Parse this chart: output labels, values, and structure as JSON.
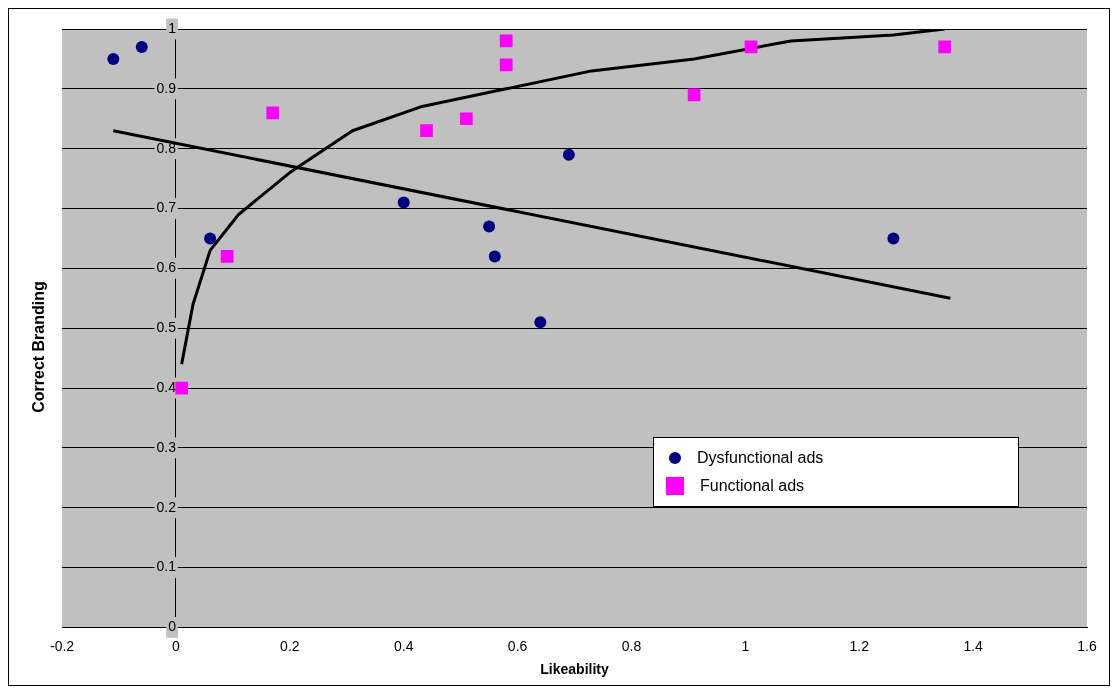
{
  "chart_data": {
    "type": "scatter",
    "xlabel": "Likeability",
    "ylabel": "Correct Branding",
    "xlim": [
      -0.2,
      1.6
    ],
    "xticks": [
      -0.2,
      0,
      0.2,
      0.4,
      0.6,
      0.8,
      1,
      1.2,
      1.4,
      1.6
    ],
    "ylim": [
      0,
      1
    ],
    "yticks": [
      0,
      0.1,
      0.2,
      0.3,
      0.4,
      0.5,
      0.6,
      0.7,
      0.8,
      0.9,
      1
    ],
    "grid": "y",
    "legend": "right",
    "series": [
      {
        "name": "Dysfunctional ads",
        "type": "scatter",
        "marker": "circle",
        "color": "#000080",
        "x": [
          -0.11,
          -0.06,
          0.06,
          0.4,
          0.55,
          0.56,
          0.64,
          0.69,
          1.26
        ],
        "values": [
          0.95,
          0.97,
          0.65,
          0.71,
          0.67,
          0.62,
          0.51,
          0.79,
          0.65
        ]
      },
      {
        "name": "Functional ads",
        "type": "scatter",
        "marker": "square",
        "color": "#ff00ff",
        "x": [
          0.01,
          0.09,
          0.17,
          0.44,
          0.51,
          0.58,
          0.58,
          0.91,
          1.01,
          1.35
        ],
        "values": [
          0.4,
          0.62,
          0.86,
          0.83,
          0.85,
          0.98,
          0.94,
          0.89,
          0.97,
          0.97
        ]
      },
      {
        "type": "line",
        "marker": "none",
        "color": "#000000",
        "x": [
          -0.11,
          1.36
        ],
        "values": [
          0.83,
          0.55
        ]
      },
      {
        "type": "line",
        "marker": "none",
        "color": "#000000",
        "x": [
          0.01,
          0.03,
          0.06,
          0.11,
          0.2,
          0.31,
          0.43,
          0.58,
          0.73,
          0.91,
          1.08,
          1.26,
          1.35
        ],
        "values": [
          0.44,
          0.54,
          0.63,
          0.69,
          0.76,
          0.83,
          0.87,
          0.9,
          0.93,
          0.95,
          0.98,
          0.99,
          1.0
        ]
      }
    ]
  }
}
